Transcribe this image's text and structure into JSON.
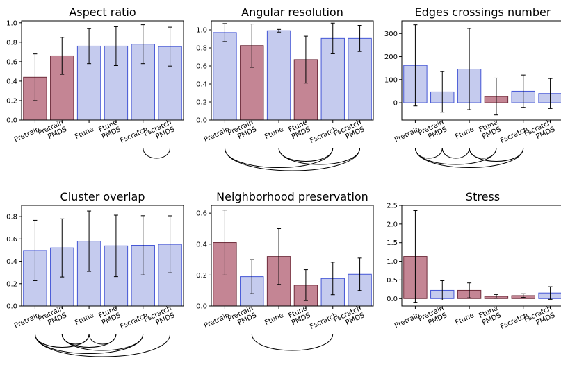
{
  "colors": {
    "blue_fill": "#c5cbee",
    "blue_edge": "#4456d6",
    "red_fill": "#c48594",
    "red_edge": "#6f2d3c"
  },
  "chart_data": [
    {
      "type": "bar",
      "title": "Aspect ratio",
      "categories": [
        "Pretrain",
        "Pretrain PMDS",
        "Ftune",
        "Ftune PMDS",
        "Fscratch",
        "Fscratch PMDS"
      ],
      "values": [
        0.44,
        0.66,
        0.76,
        0.76,
        0.78,
        0.755
      ],
      "errors": [
        0.24,
        0.19,
        0.18,
        0.2,
        0.2,
        0.2
      ],
      "highlight": [
        true,
        true,
        false,
        false,
        false,
        false
      ],
      "yticks": [
        0.0,
        0.2,
        0.4,
        0.6,
        0.8,
        1.0
      ],
      "ylim": [
        0,
        1.02
      ],
      "connections": [
        [
          4,
          5
        ]
      ]
    },
    {
      "type": "bar",
      "title": "Angular resolution",
      "categories": [
        "Pretrain",
        "Pretrain PMDS",
        "Ftune",
        "Ftune PMDS",
        "Fscratch",
        "Fscratch PMDS"
      ],
      "values": [
        0.97,
        0.825,
        0.99,
        0.67,
        0.905,
        0.905
      ],
      "errors": [
        0.1,
        0.24,
        0.015,
        0.26,
        0.17,
        0.145
      ],
      "highlight": [
        false,
        true,
        false,
        true,
        false,
        false
      ],
      "yticks": [
        0.0,
        0.2,
        0.4,
        0.6,
        0.8,
        1.0
      ],
      "ylim": [
        0,
        1.1
      ],
      "connections": [
        [
          0,
          4
        ],
        [
          0,
          5
        ],
        [
          2,
          4
        ],
        [
          2,
          5
        ]
      ]
    },
    {
      "type": "bar",
      "title": "Edges crossings number",
      "categories": [
        "Pretrain",
        "Pretrain PMDS",
        "Ftune",
        "Ftune PMDS",
        "Fscratch",
        "Fscratch PMDS"
      ],
      "values": [
        162,
        47,
        146,
        27,
        50,
        40
      ],
      "errors": [
        176,
        88,
        176,
        80,
        70,
        65
      ],
      "highlight": [
        false,
        false,
        false,
        true,
        false,
        false
      ],
      "yticks": [
        0,
        100,
        200,
        300
      ],
      "ylim": [
        -75,
        355
      ],
      "connections": [
        [
          0,
          1
        ],
        [
          0,
          3
        ],
        [
          0,
          4
        ],
        [
          1,
          2
        ],
        [
          2,
          3
        ],
        [
          2,
          4
        ]
      ]
    },
    {
      "type": "bar",
      "title": "Cluster overlap",
      "categories": [
        "Pretrain",
        "Pretrain PMDS",
        "Ftune",
        "Ftune PMDS",
        "Fscratch",
        "Fscratch PMDS"
      ],
      "values": [
        0.497,
        0.52,
        0.58,
        0.538,
        0.543,
        0.552
      ],
      "errors": [
        0.27,
        0.26,
        0.27,
        0.275,
        0.265,
        0.255
      ],
      "highlight": [
        false,
        false,
        false,
        false,
        false,
        false
      ],
      "yticks": [
        0.0,
        0.2,
        0.4,
        0.6,
        0.8
      ],
      "ylim": [
        0,
        0.9
      ],
      "connections": [
        [
          0,
          2
        ],
        [
          0,
          4
        ],
        [
          0,
          5
        ],
        [
          1,
          2
        ],
        [
          1,
          3
        ],
        [
          1,
          4
        ],
        [
          2,
          3
        ]
      ]
    },
    {
      "type": "bar",
      "title": "Neighborhood preservation",
      "categories": [
        "Pretrain",
        "Pretrain PMDS",
        "Ftune",
        "Ftune PMDS",
        "Fscratch",
        "Fscratch PMDS"
      ],
      "values": [
        0.41,
        0.19,
        0.32,
        0.135,
        0.178,
        0.205
      ],
      "errors": [
        0.21,
        0.11,
        0.18,
        0.1,
        0.105,
        0.105
      ],
      "highlight": [
        true,
        false,
        true,
        true,
        false,
        false
      ],
      "yticks": [
        0.0,
        0.2,
        0.4,
        0.6
      ],
      "ylim": [
        0,
        0.65
      ],
      "connections": [
        [
          1,
          4
        ]
      ]
    },
    {
      "type": "bar",
      "title": "Stress",
      "categories": [
        "Pretrain",
        "Pretrain PMDS",
        "Ftune",
        "Ftune PMDS",
        "Fscratch",
        "Fscratch PMDS"
      ],
      "values": [
        1.13,
        0.22,
        0.22,
        0.06,
        0.08,
        0.15
      ],
      "errors": [
        1.23,
        0.26,
        0.2,
        0.05,
        0.05,
        0.17
      ],
      "highlight": [
        true,
        false,
        true,
        true,
        true,
        false
      ],
      "yticks": [
        0.0,
        0.5,
        1.0,
        1.5,
        2.0,
        2.5
      ],
      "ylim": [
        -0.2,
        2.5
      ],
      "connections": []
    }
  ]
}
